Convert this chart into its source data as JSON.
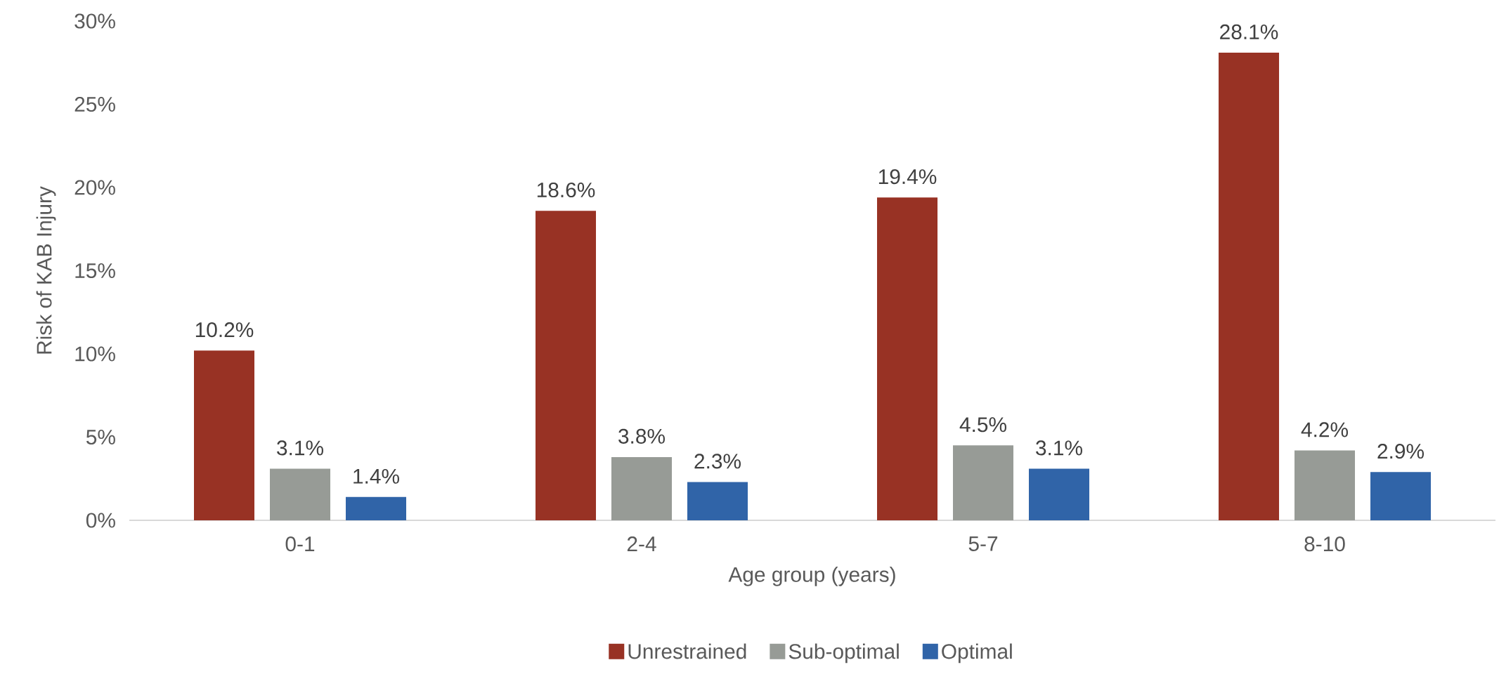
{
  "chart_data": {
    "type": "bar",
    "xlabel": "Age group (years)",
    "ylabel": "Risk of KAB Injury",
    "categories": [
      "0-1",
      "2-4",
      "5-7",
      "8-10"
    ],
    "series": [
      {
        "name": "Unrestrained",
        "color": "#983224",
        "values": [
          10.2,
          18.6,
          19.4,
          28.1
        ],
        "value_labels": [
          "10.2%",
          "18.6%",
          "19.4%",
          "28.1%"
        ]
      },
      {
        "name": "Sub-optimal",
        "color": "#979b96",
        "values": [
          3.1,
          3.8,
          4.5,
          4.2
        ],
        "value_labels": [
          "3.1%",
          "3.8%",
          "4.5%",
          "4.2%"
        ]
      },
      {
        "name": "Optimal",
        "color": "#3064a8",
        "values": [
          1.4,
          2.3,
          3.1,
          2.9
        ],
        "value_labels": [
          "1.4%",
          "2.3%",
          "3.1%",
          "2.9%"
        ]
      }
    ],
    "ylim": [
      0,
      30
    ],
    "yticks": [
      {
        "value": 0,
        "label": "0%"
      },
      {
        "value": 5,
        "label": "5%"
      },
      {
        "value": 10,
        "label": "10%"
      },
      {
        "value": 15,
        "label": "15%"
      },
      {
        "value": 20,
        "label": "20%"
      },
      {
        "value": 25,
        "label": "25%"
      },
      {
        "value": 30,
        "label": "30%"
      }
    ],
    "legend": "bottom"
  }
}
